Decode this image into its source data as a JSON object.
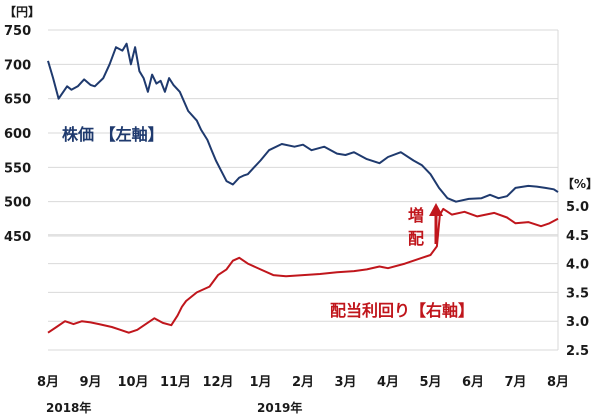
{
  "chart_data": {
    "type": "line",
    "title": "",
    "grid": true,
    "colors": {
      "price": "#1f3a6e",
      "yield": "#c0161c",
      "grid": "#d9d9d9",
      "text": "#1a1a1a"
    },
    "left_axis": {
      "unit_label": "【円】",
      "ylim": [
        450,
        750
      ],
      "ticks": [
        "750",
        "700",
        "650",
        "600",
        "550",
        "500",
        "450"
      ]
    },
    "right_axis": {
      "unit_label": "【%】",
      "ylim": [
        2.5,
        5.0
      ],
      "ticks": [
        "5.0",
        "4.5",
        "4.0",
        "3.5",
        "3.0",
        "2.5"
      ]
    },
    "x_axis": {
      "month_labels": [
        "8月",
        "9月",
        "10月",
        "11月",
        "12月",
        "1月",
        "2月",
        "3月",
        "4月",
        "5月",
        "6月",
        "7月",
        "8月"
      ],
      "year_labels": [
        "2018年",
        "2019年"
      ],
      "range": [
        0,
        12
      ]
    },
    "series": [
      {
        "id": "price",
        "name": "株価 【左軸】",
        "axis": "left",
        "x": [
          0,
          0.12,
          0.25,
          0.45,
          0.55,
          0.7,
          0.85,
          1.0,
          1.1,
          1.3,
          1.45,
          1.6,
          1.75,
          1.85,
          1.95,
          2.05,
          2.15,
          2.25,
          2.35,
          2.45,
          2.55,
          2.65,
          2.75,
          2.85,
          2.95,
          3.1,
          3.3,
          3.5,
          3.6,
          3.75,
          3.85,
          3.95,
          4.05,
          4.2,
          4.35,
          4.5,
          4.6,
          4.7,
          4.85,
          5.0,
          5.2,
          5.5,
          5.8,
          6.0,
          6.2,
          6.5,
          6.8,
          7.0,
          7.2,
          7.5,
          7.8,
          8.0,
          8.3,
          8.6,
          8.8,
          9.0,
          9.2,
          9.4,
          9.6,
          9.9,
          10.2,
          10.4,
          10.6,
          10.8,
          11.0,
          11.3,
          11.5,
          11.7,
          11.9,
          12.0
        ],
        "values": [
          705,
          680,
          650,
          668,
          663,
          668,
          678,
          670,
          668,
          680,
          700,
          725,
          720,
          730,
          700,
          725,
          690,
          680,
          660,
          685,
          672,
          676,
          660,
          680,
          670,
          660,
          632,
          618,
          605,
          590,
          575,
          560,
          548,
          530,
          525,
          535,
          538,
          540,
          550,
          560,
          575,
          584,
          580,
          583,
          575,
          580,
          570,
          568,
          572,
          562,
          556,
          565,
          572,
          560,
          553,
          540,
          520,
          505,
          500,
          504,
          505,
          510,
          505,
          508,
          520,
          523,
          522,
          520,
          518,
          514
        ]
      },
      {
        "id": "yield",
        "name": "配当利回り【右軸】",
        "axis": "right",
        "x": [
          0,
          0.2,
          0.4,
          0.6,
          0.8,
          1.0,
          1.2,
          1.5,
          1.7,
          1.9,
          2.1,
          2.3,
          2.5,
          2.7,
          2.9,
          3.05,
          3.15,
          3.25,
          3.5,
          3.8,
          4.0,
          4.2,
          4.35,
          4.5,
          4.7,
          5.0,
          5.3,
          5.6,
          6.0,
          6.4,
          6.8,
          7.2,
          7.5,
          7.8,
          8.0,
          8.4,
          8.8,
          9.0,
          9.15,
          9.22,
          9.3,
          9.5,
          9.8,
          10.1,
          10.5,
          10.8,
          11.0,
          11.3,
          11.6,
          11.8,
          12.0
        ],
        "values": [
          2.8,
          2.9,
          3.0,
          2.95,
          3.0,
          2.98,
          2.95,
          2.9,
          2.85,
          2.8,
          2.85,
          2.95,
          3.05,
          2.97,
          2.93,
          3.1,
          3.25,
          3.35,
          3.5,
          3.6,
          3.8,
          3.9,
          4.05,
          4.1,
          4.0,
          3.9,
          3.8,
          3.78,
          3.8,
          3.82,
          3.85,
          3.87,
          3.9,
          3.95,
          3.92,
          4.0,
          4.1,
          4.15,
          4.3,
          4.85,
          4.95,
          4.85,
          4.9,
          4.82,
          4.88,
          4.8,
          4.7,
          4.72,
          4.65,
          4.7,
          4.78
        ]
      }
    ],
    "annotations": {
      "price_label": "株価 【左軸】",
      "yield_label": "配当利回り【右軸】",
      "dividend_raise_top": "増",
      "dividend_raise_bottom": "配"
    }
  }
}
